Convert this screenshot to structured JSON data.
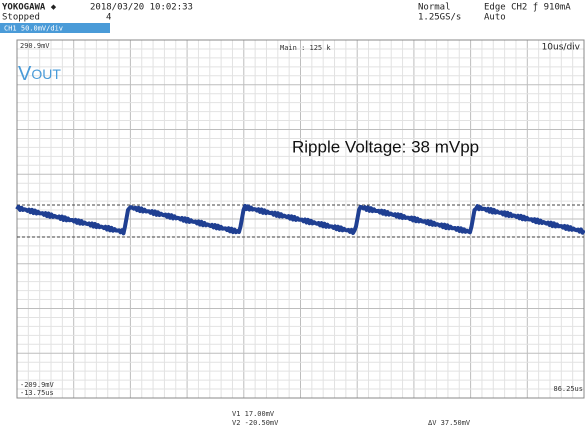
{
  "header": {
    "brand": "YOKOGAWA ◆",
    "datetime": "2018/03/20 10:02:33",
    "status": "Stopped",
    "acq_count": "4",
    "channel": "CH1 50.0mV/div",
    "mode": "Normal",
    "sample_rate": "1.25GS/s",
    "trigger": "Edge CH2 ƒ 910mA",
    "trigger_mode": "Auto"
  },
  "screen": {
    "top_level": "290.9mV",
    "main": "Main : 125 k",
    "timebase": "10us/div",
    "trace_label_main": "V",
    "trace_label_sub": "OUT",
    "annotation": "Ripple Voltage: 38 mVpp",
    "bottom_level": "-209.9mV",
    "bottom_time": "-13.75us",
    "end_time": "86.25us"
  },
  "cursors": {
    "v1": "V1  17.00mV",
    "v2": "V2 -20.50mV",
    "dv": "ΔV  37.50mV"
  }
}
